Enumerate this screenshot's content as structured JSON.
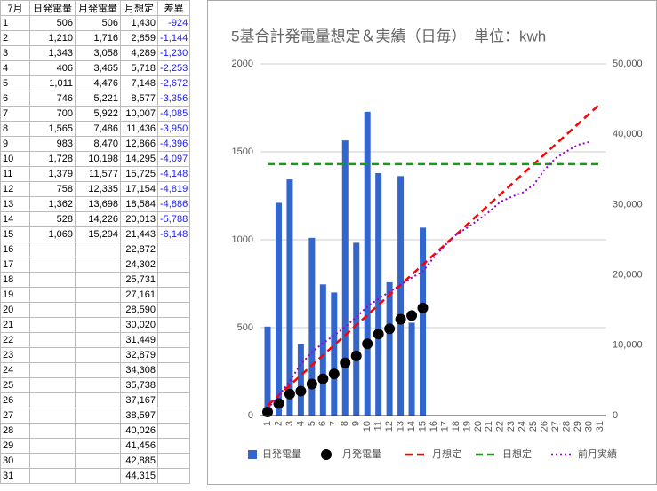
{
  "table": {
    "header": [
      "7月",
      "日発電量",
      "月発電量",
      "月想定",
      "差異"
    ],
    "rows": [
      {
        "day": "1",
        "daily": "506",
        "monthly": "506",
        "plan": "1,430",
        "diff": "-924"
      },
      {
        "day": "2",
        "daily": "1,210",
        "monthly": "1,716",
        "plan": "2,859",
        "diff": "-1,144"
      },
      {
        "day": "3",
        "daily": "1,343",
        "monthly": "3,058",
        "plan": "4,289",
        "diff": "-1,230"
      },
      {
        "day": "4",
        "daily": "406",
        "monthly": "3,465",
        "plan": "5,718",
        "diff": "-2,253"
      },
      {
        "day": "5",
        "daily": "1,011",
        "monthly": "4,476",
        "plan": "7,148",
        "diff": "-2,672"
      },
      {
        "day": "6",
        "daily": "746",
        "monthly": "5,221",
        "plan": "8,577",
        "diff": "-3,356"
      },
      {
        "day": "7",
        "daily": "700",
        "monthly": "5,922",
        "plan": "10,007",
        "diff": "-4,085"
      },
      {
        "day": "8",
        "daily": "1,565",
        "monthly": "7,486",
        "plan": "11,436",
        "diff": "-3,950"
      },
      {
        "day": "9",
        "daily": "983",
        "monthly": "8,470",
        "plan": "12,866",
        "diff": "-4,396"
      },
      {
        "day": "10",
        "daily": "1,728",
        "monthly": "10,198",
        "plan": "14,295",
        "diff": "-4,097"
      },
      {
        "day": "11",
        "daily": "1,379",
        "monthly": "11,577",
        "plan": "15,725",
        "diff": "-4,148"
      },
      {
        "day": "12",
        "daily": "758",
        "monthly": "12,335",
        "plan": "17,154",
        "diff": "-4,819"
      },
      {
        "day": "13",
        "daily": "1,362",
        "monthly": "13,698",
        "plan": "18,584",
        "diff": "-4,886"
      },
      {
        "day": "14",
        "daily": "528",
        "monthly": "14,226",
        "plan": "20,013",
        "diff": "-5,788"
      },
      {
        "day": "15",
        "daily": "1,069",
        "monthly": "15,294",
        "plan": "21,443",
        "diff": "-6,148"
      },
      {
        "day": "16",
        "plan": "22,872"
      },
      {
        "day": "17",
        "plan": "24,302"
      },
      {
        "day": "18",
        "plan": "25,731"
      },
      {
        "day": "19",
        "plan": "27,161"
      },
      {
        "day": "20",
        "plan": "28,590"
      },
      {
        "day": "21",
        "plan": "30,020"
      },
      {
        "day": "22",
        "plan": "31,449"
      },
      {
        "day": "23",
        "plan": "32,879"
      },
      {
        "day": "24",
        "plan": "34,308"
      },
      {
        "day": "25",
        "plan": "35,738"
      },
      {
        "day": "26",
        "plan": "37,167"
      },
      {
        "day": "27",
        "plan": "38,597"
      },
      {
        "day": "28",
        "plan": "40,026"
      },
      {
        "day": "29",
        "plan": "41,456"
      },
      {
        "day": "30",
        "plan": "42,885"
      },
      {
        "day": "31",
        "plan": "44,315"
      }
    ]
  },
  "chart_data": {
    "type": "combo",
    "title": "5基合計発電量想定＆実績（日毎）　単位：kwh",
    "categories": [
      "1",
      "2",
      "3",
      "4",
      "5",
      "6",
      "7",
      "8",
      "9",
      "10",
      "11",
      "12",
      "13",
      "14",
      "15",
      "16",
      "17",
      "18",
      "19",
      "20",
      "21",
      "22",
      "23",
      "24",
      "25",
      "26",
      "27",
      "28",
      "29",
      "30",
      "31"
    ],
    "ylim": [
      0,
      2000
    ],
    "yticks": [
      0,
      500,
      1000,
      1500,
      2000
    ],
    "y2lim": [
      0,
      50000
    ],
    "y2ticks": [
      0,
      {
        "value": 10000,
        "label": "10,000"
      },
      {
        "value": 20000,
        "label": "20,000"
      },
      {
        "value": 30000,
        "label": "30,000"
      },
      {
        "value": 40000,
        "label": "40,000"
      },
      {
        "value": 50000,
        "label": "50,000"
      }
    ],
    "grid": true,
    "series": [
      {
        "name": "日発電量",
        "type": "bar",
        "color": "#3366cc",
        "values": [
          506,
          1210,
          1343,
          406,
          1011,
          746,
          700,
          1565,
          983,
          1728,
          1379,
          758,
          1362,
          528,
          1069,
          null,
          null,
          null,
          null,
          null,
          null,
          null,
          null,
          null,
          null,
          null,
          null,
          null,
          null,
          null,
          null
        ]
      },
      {
        "name": "月発電量",
        "type": "dots",
        "axis": "y2",
        "color": "#000000",
        "values": [
          506,
          1716,
          3058,
          3465,
          4476,
          5221,
          5922,
          7486,
          8470,
          10198,
          11577,
          12335,
          13698,
          14226,
          15294,
          null,
          null,
          null,
          null,
          null,
          null,
          null,
          null,
          null,
          null,
          null,
          null,
          null,
          null,
          null,
          null
        ]
      },
      {
        "name": "月想定",
        "type": "dashed",
        "axis": "y2",
        "color": "#ff0000",
        "values": [
          1430,
          2859,
          4289,
          5718,
          7148,
          8577,
          10007,
          11436,
          12866,
          14295,
          15725,
          17154,
          18584,
          20013,
          21443,
          22872,
          24302,
          25731,
          27161,
          28590,
          30020,
          31449,
          32879,
          34308,
          35738,
          37167,
          38597,
          40026,
          41456,
          42885,
          44315
        ]
      },
      {
        "name": "日想定",
        "type": "dashed",
        "color": "#1a9a1a",
        "values": [
          1430,
          1430,
          1430,
          1430,
          1430,
          1430,
          1430,
          1430,
          1430,
          1430,
          1430,
          1430,
          1430,
          1430,
          1430,
          1430,
          1430,
          1430,
          1430,
          1430,
          1430,
          1430,
          1430,
          1430,
          1430,
          1430,
          1430,
          1430,
          1430,
          1430,
          1430
        ]
      },
      {
        "name": "前月実績",
        "type": "dotted",
        "axis": "y2",
        "color": "#9900cc",
        "values": [
          1000,
          2800,
          4900,
          7300,
          9000,
          10300,
          11400,
          12600,
          14000,
          15500,
          16600,
          17600,
          18600,
          19600,
          20500,
          22500,
          24200,
          25700,
          26700,
          27800,
          29000,
          30400,
          31100,
          31700,
          32800,
          35000,
          36600,
          37600,
          38500,
          38900,
          null
        ]
      }
    ]
  }
}
